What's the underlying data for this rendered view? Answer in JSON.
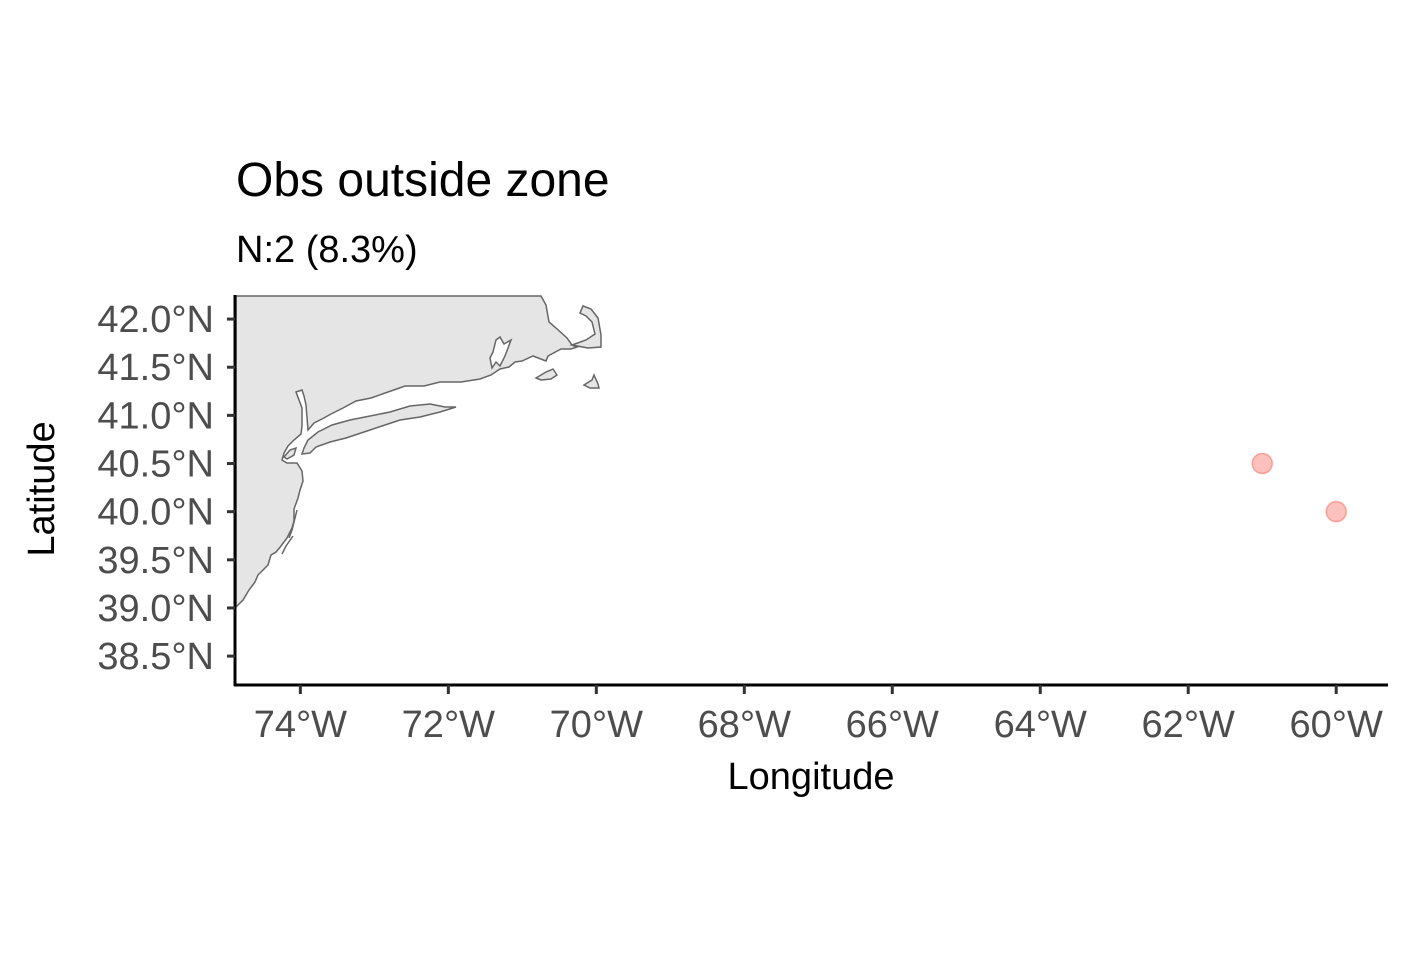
{
  "chart_data": {
    "type": "scatter",
    "title": "Obs outside zone",
    "subtitle": "N:2 (8.3%)",
    "xlabel": "Longitude",
    "ylabel": "Latitude",
    "x_ticks": [
      {
        "value": -74,
        "label": "74°W"
      },
      {
        "value": -72,
        "label": "72°W"
      },
      {
        "value": -70,
        "label": "70°W"
      },
      {
        "value": -68,
        "label": "68°W"
      },
      {
        "value": -66,
        "label": "66°W"
      },
      {
        "value": -64,
        "label": "64°W"
      },
      {
        "value": -62,
        "label": "62°W"
      },
      {
        "value": -60,
        "label": "60°W"
      }
    ],
    "y_ticks": [
      {
        "value": 42.0,
        "label": "42.0°N"
      },
      {
        "value": 41.5,
        "label": "41.5°N"
      },
      {
        "value": 41.0,
        "label": "41.0°N"
      },
      {
        "value": 40.5,
        "label": "40.5°N"
      },
      {
        "value": 40.0,
        "label": "40.0°N"
      },
      {
        "value": 39.5,
        "label": "39.5°N"
      },
      {
        "value": 39.0,
        "label": "39.0°N"
      },
      {
        "value": 38.5,
        "label": "38.5°N"
      }
    ],
    "xlim": [
      -74.87,
      -59.3
    ],
    "ylim": [
      38.2,
      42.25
    ],
    "grid": false,
    "points": [
      {
        "lon": -61.0,
        "lat": 40.5
      },
      {
        "lon": -60.0,
        "lat": 40.0
      }
    ],
    "point_color": "#f8766d",
    "land_fill": "#e5e5e5",
    "land_stroke": "#666666"
  }
}
